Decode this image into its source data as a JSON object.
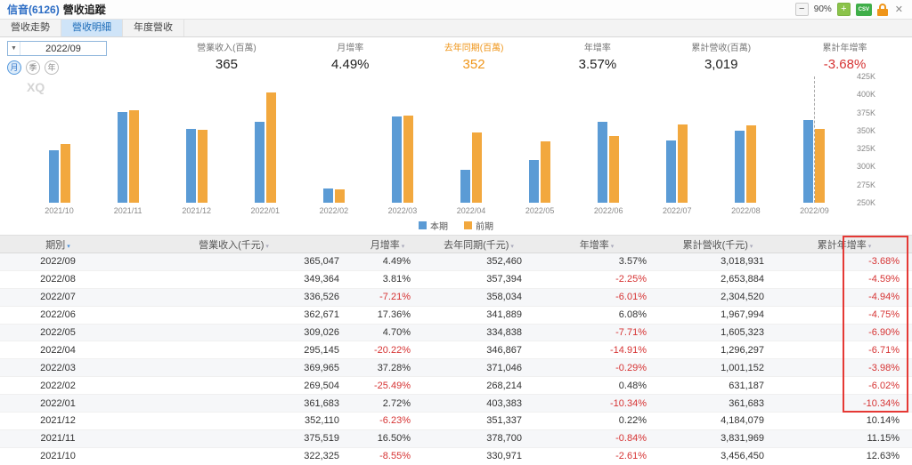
{
  "header": {
    "stock": "信音(6126)",
    "title": "營收追蹤",
    "zoom_out_label": "−",
    "zoom_level": "90%",
    "zoom_in_label": "+",
    "csv_label": "CSV",
    "close_label": "✕"
  },
  "tabs": [
    {
      "label": "營收走勢"
    },
    {
      "label": "營收明細"
    },
    {
      "label": "年度營收"
    }
  ],
  "controls": {
    "period": "2022/09",
    "caret": "▼",
    "freq": [
      "月",
      "季",
      "年"
    ]
  },
  "summary": [
    {
      "label": "營業收入(百萬)",
      "value": "365"
    },
    {
      "label": "月增率",
      "value": "4.49%"
    },
    {
      "label": "去年同期(百萬)",
      "value": "352"
    },
    {
      "label": "年增率",
      "value": "3.57%"
    },
    {
      "label": "累計營收(百萬)",
      "value": "3,019"
    },
    {
      "label": "累計年增率",
      "value": "-3.68%"
    }
  ],
  "colors": {
    "bar_current": "#5b9bd5",
    "bar_previous": "#f2a83e",
    "negative": "#d63333",
    "accent_orange": "#ef9519",
    "title_blue": "#2b6cc4",
    "tab_active_bg": "#cfe4f8",
    "highlight_red": "#e53935"
  },
  "chart_data": {
    "type": "bar",
    "title": "",
    "watermark": "XQ",
    "categories": [
      "2021/10",
      "2021/11",
      "2021/12",
      "2022/01",
      "2022/02",
      "2022/03",
      "2022/04",
      "2022/05",
      "2022/06",
      "2022/07",
      "2022/08",
      "2022/09"
    ],
    "series": [
      {
        "name": "本期",
        "color": "#5b9bd5",
        "values": [
          322325,
          375519,
          352110,
          361683,
          269504,
          369965,
          295145,
          309026,
          362671,
          336526,
          349364,
          365047
        ]
      },
      {
        "name": "前期",
        "color": "#f2a83e",
        "values": [
          330971,
          378700,
          351337,
          403383,
          268214,
          371046,
          346867,
          334838,
          341889,
          358034,
          357394,
          352460
        ]
      }
    ],
    "ylim": [
      250000,
      425000
    ],
    "yticks": [
      "425K",
      "400K",
      "375K",
      "350K",
      "325K",
      "300K",
      "275K",
      "250K"
    ],
    "grid": false,
    "legend_position": "bottom",
    "marker_line_category": "2022/09"
  },
  "table": {
    "sort_icon": "▾",
    "columns": [
      "期別",
      "營業收入(千元)",
      "月增率",
      "去年同期(千元)",
      "年增率",
      "累計營收(千元)",
      "累計年增率"
    ],
    "rows": [
      [
        "2022/09",
        "365,047",
        "4.49%",
        "352,460",
        "3.57%",
        "3,018,931",
        "-3.68%"
      ],
      [
        "2022/08",
        "349,364",
        "3.81%",
        "357,394",
        "-2.25%",
        "2,653,884",
        "-4.59%"
      ],
      [
        "2022/07",
        "336,526",
        "-7.21%",
        "358,034",
        "-6.01%",
        "2,304,520",
        "-4.94%"
      ],
      [
        "2022/06",
        "362,671",
        "17.36%",
        "341,889",
        "6.08%",
        "1,967,994",
        "-4.75%"
      ],
      [
        "2022/05",
        "309,026",
        "4.70%",
        "334,838",
        "-7.71%",
        "1,605,323",
        "-6.90%"
      ],
      [
        "2022/04",
        "295,145",
        "-20.22%",
        "346,867",
        "-14.91%",
        "1,296,297",
        "-6.71%"
      ],
      [
        "2022/03",
        "369,965",
        "37.28%",
        "371,046",
        "-0.29%",
        "1,001,152",
        "-3.98%"
      ],
      [
        "2022/02",
        "269,504",
        "-25.49%",
        "268,214",
        "0.48%",
        "631,187",
        "-6.02%"
      ],
      [
        "2022/01",
        "361,683",
        "2.72%",
        "403,383",
        "-10.34%",
        "361,683",
        "-10.34%"
      ],
      [
        "2021/12",
        "352,110",
        "-6.23%",
        "351,337",
        "0.22%",
        "4,184,079",
        "10.14%"
      ],
      [
        "2021/11",
        "375,519",
        "16.50%",
        "378,700",
        "-0.84%",
        "3,831,969",
        "11.15%"
      ],
      [
        "2021/10",
        "322,325",
        "-8.55%",
        "330,971",
        "-2.61%",
        "3,456,450",
        "12.63%"
      ]
    ],
    "highlight_rows": 9
  }
}
